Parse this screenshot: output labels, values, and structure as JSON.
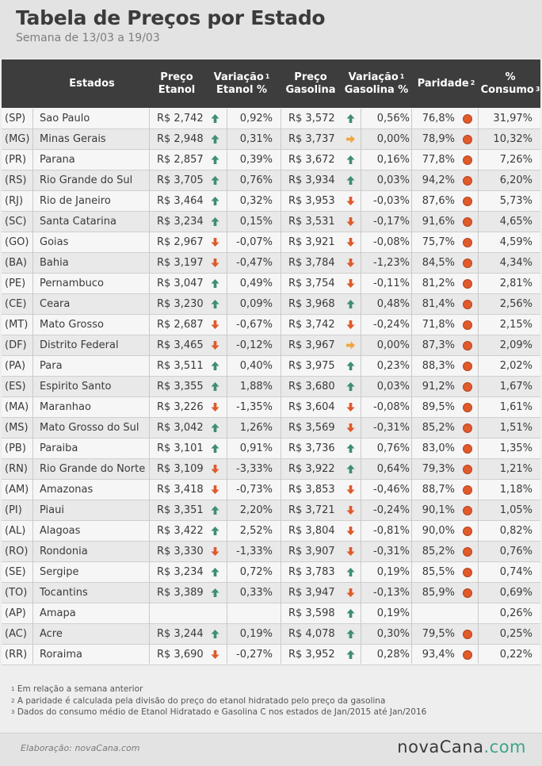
{
  "title": "Tabela de Preços por Estado",
  "subtitle": "Semana de 13/03 a 19/03",
  "columns": {
    "estados": "Estados",
    "preco_etanol": [
      "Preço",
      "Etanol"
    ],
    "variacao_etanol": [
      "Variação",
      "Etanol %"
    ],
    "preco_gasolina": [
      "Preço",
      "Gasolina"
    ],
    "variacao_gasolina": [
      "Variação",
      "Gasolina %"
    ],
    "paridade": "Paridade",
    "consumo": [
      "%",
      "Consumo"
    ],
    "sup1": "1",
    "sup2": "2",
    "sup3": "3"
  },
  "colors": {
    "up": "#3f8e72",
    "down": "#de5a2a",
    "flat": "#f0a540",
    "dot": "#e05a2b",
    "header_bg": "#3d3d3d"
  },
  "rows": [
    {
      "uf": "(SP)",
      "estado": "Sao Paulo",
      "preco_etanol": "R$ 2,742",
      "dir_etanol": "up",
      "var_etanol": "0,92%",
      "preco_gasolina": "R$ 3,572",
      "dir_gasolina": "up",
      "var_gasolina": "0,56%",
      "paridade": "76,8%",
      "consumo": "31,97%"
    },
    {
      "uf": "(MG)",
      "estado": "Minas Gerais",
      "preco_etanol": "R$ 2,948",
      "dir_etanol": "up",
      "var_etanol": "0,31%",
      "preco_gasolina": "R$ 3,737",
      "dir_gasolina": "flat",
      "var_gasolina": "0,00%",
      "paridade": "78,9%",
      "consumo": "10,32%"
    },
    {
      "uf": "(PR)",
      "estado": "Parana",
      "preco_etanol": "R$ 2,857",
      "dir_etanol": "up",
      "var_etanol": "0,39%",
      "preco_gasolina": "R$ 3,672",
      "dir_gasolina": "up",
      "var_gasolina": "0,16%",
      "paridade": "77,8%",
      "consumo": "7,26%"
    },
    {
      "uf": "(RS)",
      "estado": "Rio Grande do Sul",
      "preco_etanol": "R$ 3,705",
      "dir_etanol": "up",
      "var_etanol": "0,76%",
      "preco_gasolina": "R$ 3,934",
      "dir_gasolina": "up",
      "var_gasolina": "0,03%",
      "paridade": "94,2%",
      "consumo": "6,20%"
    },
    {
      "uf": "(RJ)",
      "estado": "Rio de Janeiro",
      "preco_etanol": "R$ 3,464",
      "dir_etanol": "up",
      "var_etanol": "0,32%",
      "preco_gasolina": "R$ 3,953",
      "dir_gasolina": "down",
      "var_gasolina": "-0,03%",
      "paridade": "87,6%",
      "consumo": "5,73%"
    },
    {
      "uf": "(SC)",
      "estado": "Santa Catarina",
      "preco_etanol": "R$ 3,234",
      "dir_etanol": "up",
      "var_etanol": "0,15%",
      "preco_gasolina": "R$ 3,531",
      "dir_gasolina": "down",
      "var_gasolina": "-0,17%",
      "paridade": "91,6%",
      "consumo": "4,65%"
    },
    {
      "uf": "(GO)",
      "estado": "Goias",
      "preco_etanol": "R$ 2,967",
      "dir_etanol": "down",
      "var_etanol": "-0,07%",
      "preco_gasolina": "R$ 3,921",
      "dir_gasolina": "down",
      "var_gasolina": "-0,08%",
      "paridade": "75,7%",
      "consumo": "4,59%"
    },
    {
      "uf": "(BA)",
      "estado": "Bahia",
      "preco_etanol": "R$ 3,197",
      "dir_etanol": "down",
      "var_etanol": "-0,47%",
      "preco_gasolina": "R$ 3,784",
      "dir_gasolina": "down",
      "var_gasolina": "-1,23%",
      "paridade": "84,5%",
      "consumo": "4,34%"
    },
    {
      "uf": "(PE)",
      "estado": "Pernambuco",
      "preco_etanol": "R$ 3,047",
      "dir_etanol": "up",
      "var_etanol": "0,49%",
      "preco_gasolina": "R$ 3,754",
      "dir_gasolina": "down",
      "var_gasolina": "-0,11%",
      "paridade": "81,2%",
      "consumo": "2,81%"
    },
    {
      "uf": "(CE)",
      "estado": "Ceara",
      "preco_etanol": "R$ 3,230",
      "dir_etanol": "up",
      "var_etanol": "0,09%",
      "preco_gasolina": "R$ 3,968",
      "dir_gasolina": "up",
      "var_gasolina": "0,48%",
      "paridade": "81,4%",
      "consumo": "2,56%"
    },
    {
      "uf": "(MT)",
      "estado": "Mato Grosso",
      "preco_etanol": "R$ 2,687",
      "dir_etanol": "down",
      "var_etanol": "-0,67%",
      "preco_gasolina": "R$ 3,742",
      "dir_gasolina": "down",
      "var_gasolina": "-0,24%",
      "paridade": "71,8%",
      "consumo": "2,15%"
    },
    {
      "uf": "(DF)",
      "estado": "Distrito Federal",
      "preco_etanol": "R$ 3,465",
      "dir_etanol": "down",
      "var_etanol": "-0,12%",
      "preco_gasolina": "R$ 3,967",
      "dir_gasolina": "flat",
      "var_gasolina": "0,00%",
      "paridade": "87,3%",
      "consumo": "2,09%"
    },
    {
      "uf": "(PA)",
      "estado": "Para",
      "preco_etanol": "R$ 3,511",
      "dir_etanol": "up",
      "var_etanol": "0,40%",
      "preco_gasolina": "R$ 3,975",
      "dir_gasolina": "up",
      "var_gasolina": "0,23%",
      "paridade": "88,3%",
      "consumo": "2,02%"
    },
    {
      "uf": "(ES)",
      "estado": "Espirito Santo",
      "preco_etanol": "R$ 3,355",
      "dir_etanol": "up",
      "var_etanol": "1,88%",
      "preco_gasolina": "R$ 3,680",
      "dir_gasolina": "up",
      "var_gasolina": "0,03%",
      "paridade": "91,2%",
      "consumo": "1,67%"
    },
    {
      "uf": "(MA)",
      "estado": "Maranhao",
      "preco_etanol": "R$ 3,226",
      "dir_etanol": "down",
      "var_etanol": "-1,35%",
      "preco_gasolina": "R$ 3,604",
      "dir_gasolina": "down",
      "var_gasolina": "-0,08%",
      "paridade": "89,5%",
      "consumo": "1,61%"
    },
    {
      "uf": "(MS)",
      "estado": "Mato Grosso do Sul",
      "preco_etanol": "R$ 3,042",
      "dir_etanol": "up",
      "var_etanol": "1,26%",
      "preco_gasolina": "R$ 3,569",
      "dir_gasolina": "down",
      "var_gasolina": "-0,31%",
      "paridade": "85,2%",
      "consumo": "1,51%"
    },
    {
      "uf": "(PB)",
      "estado": "Paraiba",
      "preco_etanol": "R$ 3,101",
      "dir_etanol": "up",
      "var_etanol": "0,91%",
      "preco_gasolina": "R$ 3,736",
      "dir_gasolina": "up",
      "var_gasolina": "0,76%",
      "paridade": "83,0%",
      "consumo": "1,35%"
    },
    {
      "uf": "(RN)",
      "estado": "Rio Grande do Norte",
      "preco_etanol": "R$ 3,109",
      "dir_etanol": "down",
      "var_etanol": "-3,33%",
      "preco_gasolina": "R$ 3,922",
      "dir_gasolina": "up",
      "var_gasolina": "0,64%",
      "paridade": "79,3%",
      "consumo": "1,21%"
    },
    {
      "uf": "(AM)",
      "estado": "Amazonas",
      "preco_etanol": "R$ 3,418",
      "dir_etanol": "down",
      "var_etanol": "-0,73%",
      "preco_gasolina": "R$ 3,853",
      "dir_gasolina": "down",
      "var_gasolina": "-0,46%",
      "paridade": "88,7%",
      "consumo": "1,18%"
    },
    {
      "uf": "(PI)",
      "estado": "Piaui",
      "preco_etanol": "R$ 3,351",
      "dir_etanol": "up",
      "var_etanol": "2,20%",
      "preco_gasolina": "R$ 3,721",
      "dir_gasolina": "down",
      "var_gasolina": "-0,24%",
      "paridade": "90,1%",
      "consumo": "1,05%"
    },
    {
      "uf": "(AL)",
      "estado": "Alagoas",
      "preco_etanol": "R$ 3,422",
      "dir_etanol": "up",
      "var_etanol": "2,52%",
      "preco_gasolina": "R$ 3,804",
      "dir_gasolina": "down",
      "var_gasolina": "-0,81%",
      "paridade": "90,0%",
      "consumo": "0,82%"
    },
    {
      "uf": "(RO)",
      "estado": "Rondonia",
      "preco_etanol": "R$ 3,330",
      "dir_etanol": "down",
      "var_etanol": "-1,33%",
      "preco_gasolina": "R$ 3,907",
      "dir_gasolina": "down",
      "var_gasolina": "-0,31%",
      "paridade": "85,2%",
      "consumo": "0,76%"
    },
    {
      "uf": "(SE)",
      "estado": "Sergipe",
      "preco_etanol": "R$ 3,234",
      "dir_etanol": "up",
      "var_etanol": "0,72%",
      "preco_gasolina": "R$ 3,783",
      "dir_gasolina": "up",
      "var_gasolina": "0,19%",
      "paridade": "85,5%",
      "consumo": "0,74%"
    },
    {
      "uf": "(TO)",
      "estado": "Tocantins",
      "preco_etanol": "R$ 3,389",
      "dir_etanol": "up",
      "var_etanol": "0,33%",
      "preco_gasolina": "R$ 3,947",
      "dir_gasolina": "down",
      "var_gasolina": "-0,13%",
      "paridade": "85,9%",
      "consumo": "0,69%"
    },
    {
      "uf": "(AP)",
      "estado": "Amapa",
      "preco_etanol": "",
      "dir_etanol": "",
      "var_etanol": "",
      "preco_gasolina": "R$ 3,598",
      "dir_gasolina": "up",
      "var_gasolina": "0,19%",
      "paridade": "",
      "consumo": "0,26%"
    },
    {
      "uf": "(AC)",
      "estado": "Acre",
      "preco_etanol": "R$ 3,244",
      "dir_etanol": "up",
      "var_etanol": "0,19%",
      "preco_gasolina": "R$ 4,078",
      "dir_gasolina": "up",
      "var_gasolina": "0,30%",
      "paridade": "79,5%",
      "consumo": "0,25%"
    },
    {
      "uf": "(RR)",
      "estado": "Roraima",
      "preco_etanol": "R$ 3,690",
      "dir_etanol": "down",
      "var_etanol": "-0,27%",
      "preco_gasolina": "R$ 3,952",
      "dir_gasolina": "up",
      "var_gasolina": "0,28%",
      "paridade": "93,4%",
      "consumo": "0,22%"
    }
  ],
  "footnotes": [
    {
      "sup": "1",
      "text": "Em relação a semana anterior"
    },
    {
      "sup": "2",
      "text": "A paridade é calculada pela divisão do preço do etanol hidratado pelo preço da gasolina"
    },
    {
      "sup": "3",
      "text": "Dados do consumo médio de Etanol Hidratado e Gasolina C nos estados de Jan/2015 até Jan/2016"
    }
  ],
  "footer": {
    "credit": "Elaboração: novaCana.com",
    "logo_main": "novaCana",
    "logo_suffix": ".com"
  }
}
